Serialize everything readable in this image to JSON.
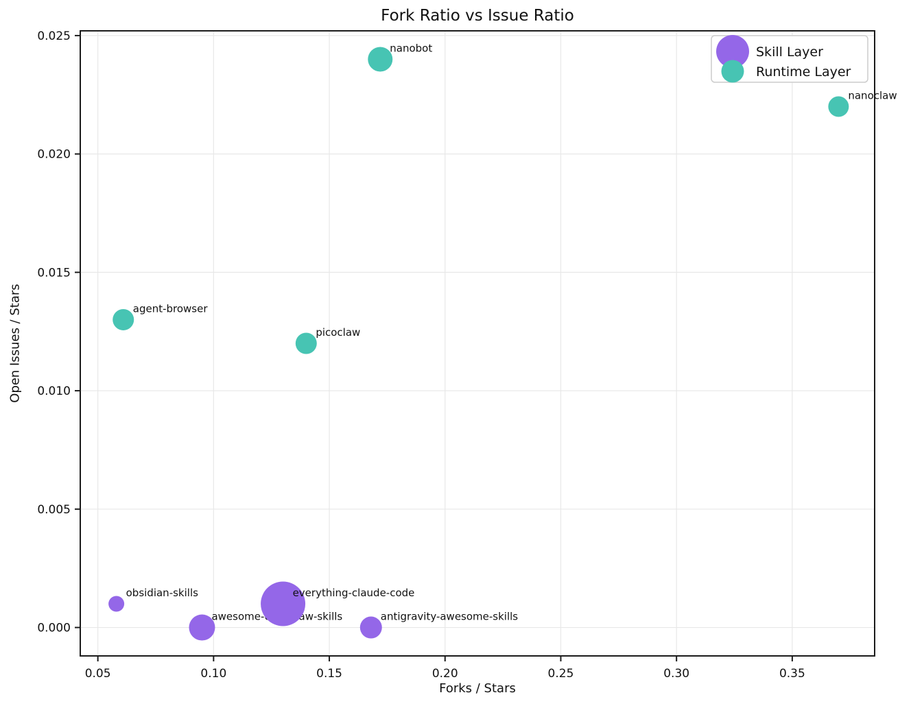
{
  "chart_data": {
    "type": "scatter",
    "title": "Fork Ratio vs Issue Ratio",
    "xlabel": "Forks / Stars",
    "ylabel": "Open Issues / Stars",
    "xlim": [
      0.0424,
      0.3856
    ],
    "ylim": [
      -0.0012,
      0.0252
    ],
    "grid": true,
    "x_ticks": [
      {
        "value": 0.05,
        "label": "0.05"
      },
      {
        "value": 0.1,
        "label": "0.10"
      },
      {
        "value": 0.15,
        "label": "0.15"
      },
      {
        "value": 0.2,
        "label": "0.20"
      },
      {
        "value": 0.25,
        "label": "0.25"
      },
      {
        "value": 0.3,
        "label": "0.30"
      },
      {
        "value": 0.35,
        "label": "0.35"
      }
    ],
    "y_ticks": [
      {
        "value": 0.0,
        "label": "0.000"
      },
      {
        "value": 0.005,
        "label": "0.005"
      },
      {
        "value": 0.01,
        "label": "0.010"
      },
      {
        "value": 0.015,
        "label": "0.015"
      },
      {
        "value": 0.02,
        "label": "0.020"
      },
      {
        "value": 0.025,
        "label": "0.025"
      }
    ],
    "series": [
      {
        "name": "Skill Layer",
        "color": "#9467e8",
        "legend_marker_radius": 24,
        "points": [
          {
            "label": "obsidian-skills",
            "x": 0.058,
            "y": 0.001,
            "r": 11.5
          },
          {
            "label": "awesome-openclaw-skills",
            "x": 0.095,
            "y": 0.0,
            "r": 19
          },
          {
            "label": "everything-claude-code",
            "x": 0.13,
            "y": 0.001,
            "r": 32.5
          },
          {
            "label": "antigravity-awesome-skills",
            "x": 0.168,
            "y": 0.0,
            "r": 16
          }
        ]
      },
      {
        "name": "Runtime Layer",
        "color": "#47c4b3",
        "legend_marker_radius": 16.5,
        "points": [
          {
            "label": "agent-browser",
            "x": 0.061,
            "y": 0.013,
            "r": 15.5
          },
          {
            "label": "picoclaw",
            "x": 0.14,
            "y": 0.012,
            "r": 15.5
          },
          {
            "label": "nanobot",
            "x": 0.172,
            "y": 0.024,
            "r": 18
          },
          {
            "label": "nanoclaw",
            "x": 0.37,
            "y": 0.022,
            "r": 15
          }
        ]
      }
    ],
    "legend": {
      "position": "upper right",
      "entries": [
        "Skill Layer",
        "Runtime Layer"
      ]
    },
    "style": {
      "background_color": "#ffffff",
      "grid_color": "#e8e8e8",
      "spine_color": "#1b1b1b",
      "text_color": "#111111",
      "legend_border_color": "#cccccc"
    }
  }
}
